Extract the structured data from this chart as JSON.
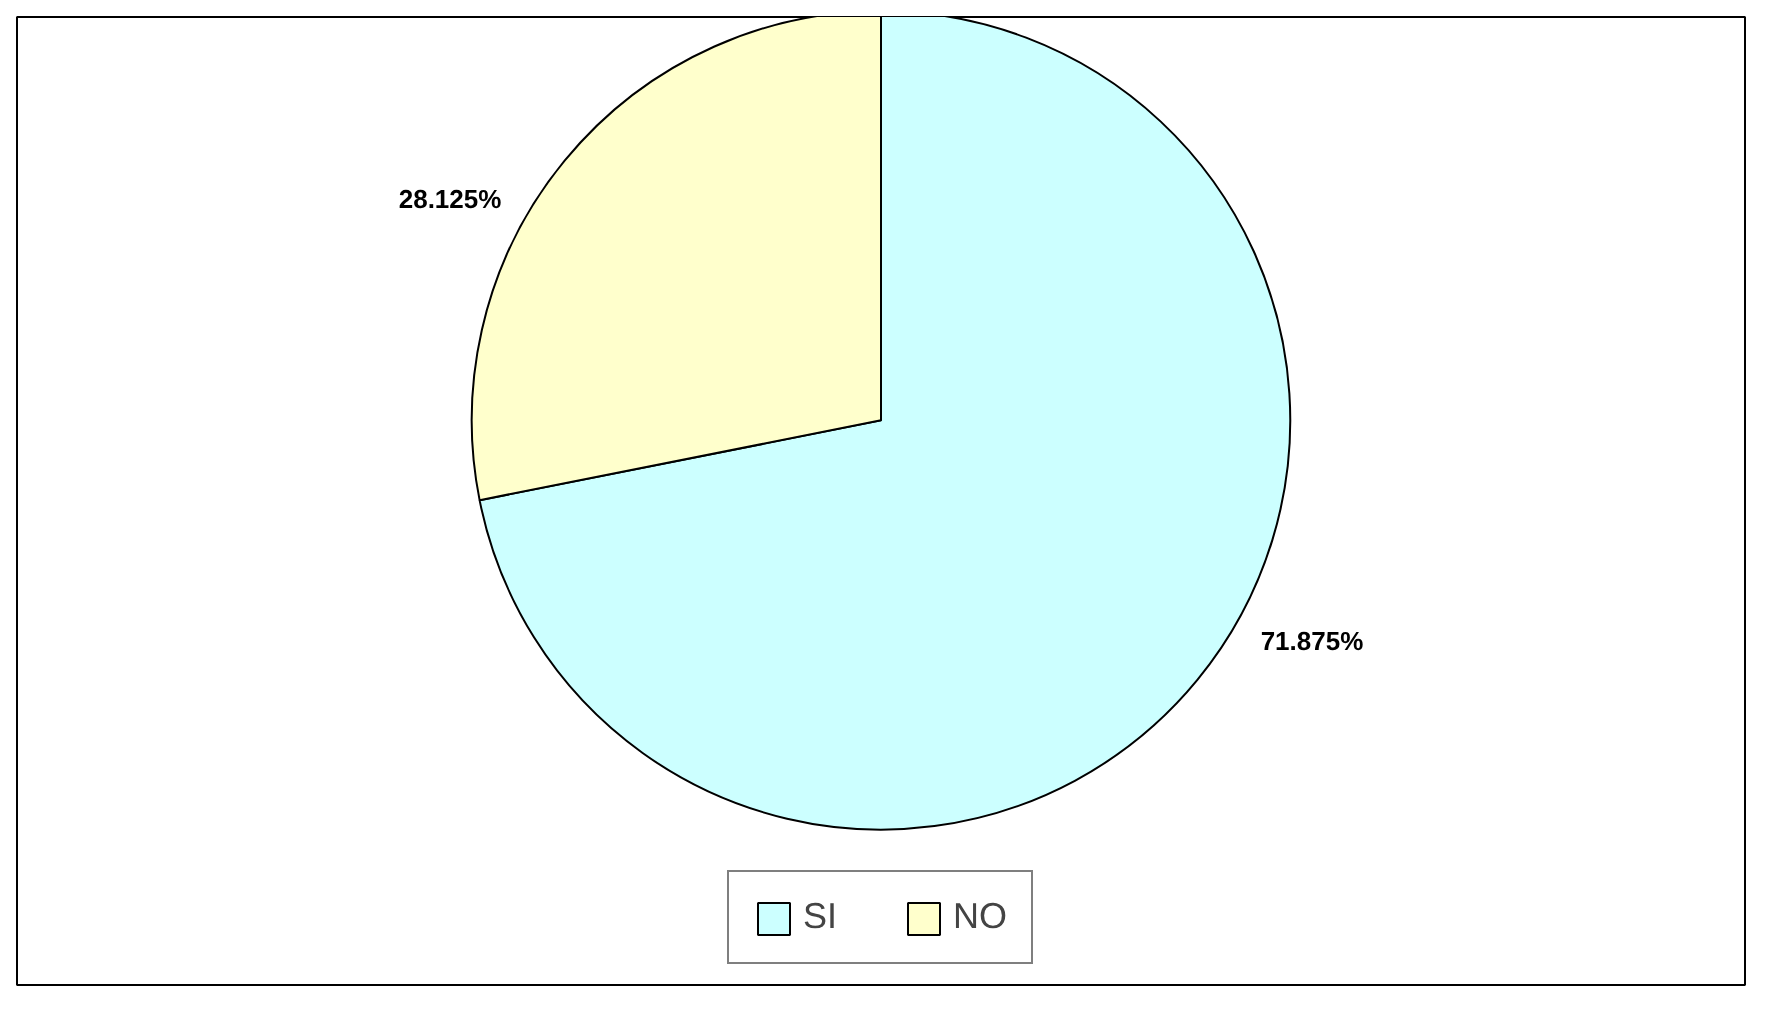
{
  "chart_data": {
    "type": "pie",
    "categories": [
      "SI",
      "NO"
    ],
    "values": [
      71.875,
      28.125
    ],
    "colors": [
      "#ccffff",
      "#ffffcc"
    ],
    "value_labels": [
      "71.875%",
      "28.125%"
    ],
    "legend": "bottom"
  }
}
